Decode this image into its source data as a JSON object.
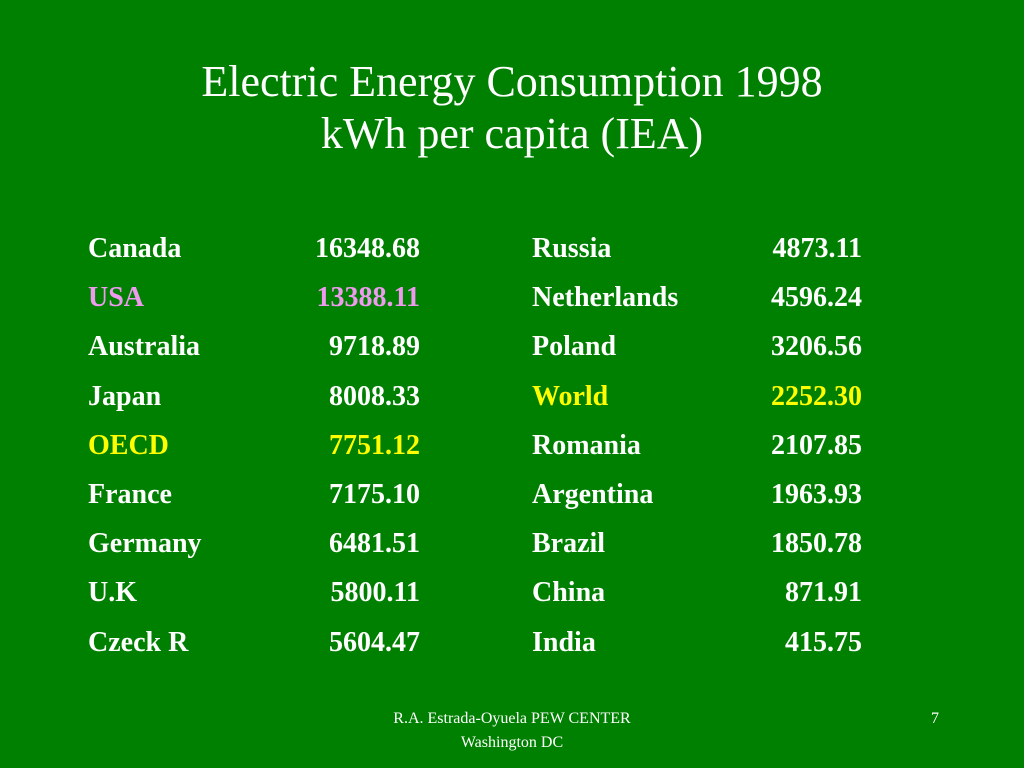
{
  "title": {
    "line1": "Electric Energy Consumption 1998",
    "line2": "kWh per capita (IEA)"
  },
  "table": {
    "left": [
      {
        "country": "Canada",
        "value": "16348.68",
        "highlight": ""
      },
      {
        "country": "USA",
        "value": "13388.11",
        "highlight": "pink"
      },
      {
        "country": "Australia",
        "value": "9718.89",
        "highlight": ""
      },
      {
        "country": "Japan",
        "value": "8008.33",
        "highlight": ""
      },
      {
        "country": "OECD",
        "value": "7751.12",
        "highlight": "yellow"
      },
      {
        "country": "France",
        "value": "7175.10",
        "highlight": ""
      },
      {
        "country": "Germany",
        "value": "6481.51",
        "highlight": ""
      },
      {
        "country": "U.K",
        "value": "5800.11",
        "highlight": ""
      },
      {
        "country": "Czeck R",
        "value": "5604.47",
        "highlight": ""
      }
    ],
    "right": [
      {
        "country": "Russia",
        "value": "4873.11",
        "highlight": ""
      },
      {
        "country": "Netherlands",
        "value": "4596.24",
        "highlight": ""
      },
      {
        "country": "Poland",
        "value": "3206.56",
        "highlight": ""
      },
      {
        "country": "World",
        "value": "2252.30",
        "highlight": "yellow"
      },
      {
        "country": "Romania",
        "value": "2107.85",
        "highlight": ""
      },
      {
        "country": "Argentina",
        "value": "1963.93",
        "highlight": ""
      },
      {
        "country": "Brazil",
        "value": "1850.78",
        "highlight": ""
      },
      {
        "country": "China",
        "value": "871.91",
        "highlight": ""
      },
      {
        "country": "India",
        "value": "415.75",
        "highlight": ""
      }
    ]
  },
  "footer": {
    "line1": "R.A. Estrada-Oyuela PEW CENTER",
    "line2": "Washington DC"
  },
  "page_number": "7",
  "colors": {
    "background": "#008000",
    "text": "#ffffff",
    "highlight_pink": "#ee9aee",
    "highlight_yellow": "#ffff00"
  }
}
